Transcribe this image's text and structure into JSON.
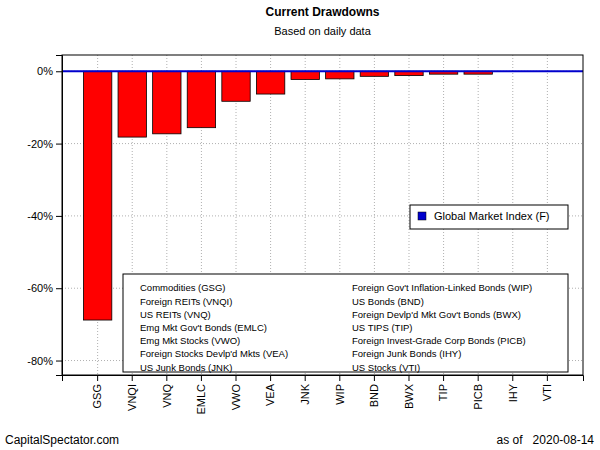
{
  "chart_data": {
    "type": "bar",
    "title": "Current Drawdowns",
    "subtitle": "Based on daily data",
    "categories": [
      "GSG",
      "VNQI",
      "VNQ",
      "EMLC",
      "VWO",
      "VEA",
      "JNK",
      "WIP",
      "BND",
      "BWX",
      "TIP",
      "PICB",
      "IHY",
      "VTI"
    ],
    "values": [
      -68.8,
      -18.2,
      -17.3,
      -15.6,
      -8.3,
      -6.3,
      -2.3,
      -2.1,
      -1.4,
      -1.2,
      -0.8,
      -0.8,
      0,
      0
    ],
    "color": "#ff0000",
    "series": [
      {
        "name": "Global Market Index (F)",
        "type": "hline",
        "color": "#0000cd",
        "value": 0
      }
    ],
    "annotations": [
      "Commodities (GSG)",
      "Foreign REITs (VNQI)",
      "US REITs (VNQ)",
      "Emg Mkt Gov't Bonds (EMLC)",
      "Emg Mkt Stocks (VWO)",
      "Foreign Stocks Devlp'd Mkts (VEA)",
      "US Junk Bonds (JNK)",
      "Foreign Gov't Inflation-Linked Bonds (WIP)",
      "US Bonds (BND)",
      "Foreign Devlp'd Mkt Gov't Bonds (BWX)",
      "US TIPS (TIP)",
      "Foreign Invest-Grade Corp Bonds (PICB)",
      "Foreign Junk Bonds (IHY)",
      "US Stocks (VTI)"
    ],
    "source": "CapitalSpectator.com",
    "date_note": "as of   2020-08-14",
    "ylim": [
      -84,
      4.5
    ],
    "yticks": [
      {
        "value": 0,
        "label": "0%"
      },
      {
        "value": -20,
        "label": "-20%"
      },
      {
        "value": -40,
        "label": "-40%"
      },
      {
        "value": -60,
        "label": "-60%"
      },
      {
        "value": -80,
        "label": "-80%"
      }
    ],
    "grid": true,
    "legend": "right"
  }
}
